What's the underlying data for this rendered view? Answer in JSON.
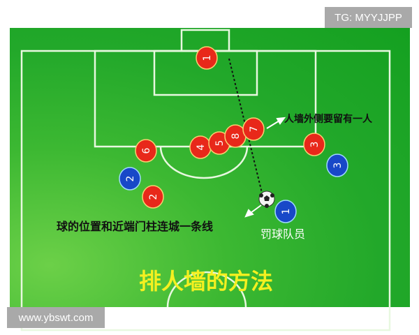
{
  "watermark_top": "TG: MYYJJPP",
  "watermark_bottom": "www.ybswt.com",
  "title": "排人墙的方法",
  "annotations": {
    "wall_outside": "人墙外侧要留有一人",
    "ball_line": "球的位置和近端门柱连城一条线",
    "kicker": "罚球队员"
  },
  "players": [
    {
      "team": "red",
      "number": "1"
    },
    {
      "team": "red",
      "number": "6"
    },
    {
      "team": "red",
      "number": "4"
    },
    {
      "team": "red",
      "number": "5"
    },
    {
      "team": "red",
      "number": "8"
    },
    {
      "team": "red",
      "number": "7"
    },
    {
      "team": "red",
      "number": "3"
    },
    {
      "team": "blue",
      "number": "3"
    },
    {
      "team": "blue",
      "number": "2"
    },
    {
      "team": "red",
      "number": "2"
    },
    {
      "team": "blue",
      "number": "1"
    }
  ],
  "colors": {
    "red_team": "#e8281a",
    "blue_team": "#1848c8",
    "title": "#f4f020",
    "pitch": "#22a82a"
  }
}
